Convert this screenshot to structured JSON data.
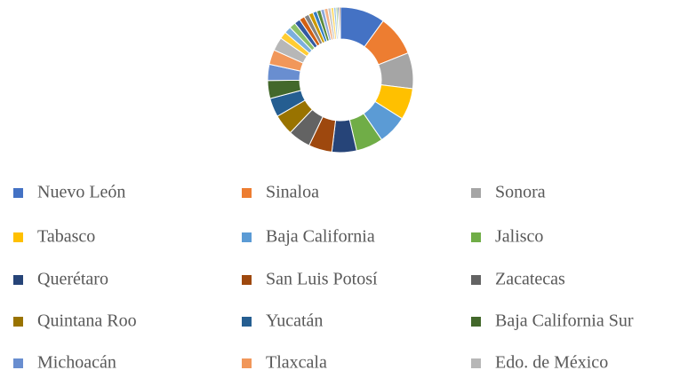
{
  "chart_data": {
    "type": "donut",
    "categories": [
      "Nuevo León",
      "Sinaloa",
      "Sonora",
      "Tabasco",
      "Baja California",
      "Jalisco",
      "Querétaro",
      "San Luis Potosí",
      "Zacatecas",
      "Quintana Roo",
      "Yucatán",
      "Baja California Sur",
      "Michoacán",
      "Tlaxcala",
      "Edo. de México",
      null,
      null,
      null,
      null,
      null,
      null,
      null,
      null,
      null,
      null,
      null,
      null,
      null,
      null,
      null,
      null,
      null
    ],
    "values": [
      10,
      9,
      8,
      7,
      6.5,
      6,
      5.5,
      5.2,
      5,
      4.6,
      4.2,
      4,
      3.6,
      3.3,
      3,
      1.6,
      1.5,
      1.4,
      1.3,
      1.2,
      1.1,
      1,
      0.9,
      0.9,
      0.8,
      0.8,
      0.7,
      0.6,
      0.5,
      0.4,
      0.3,
      0.3
    ],
    "colors": [
      "#4472C4",
      "#ED7D31",
      "#A5A5A5",
      "#FFC000",
      "#5B9BD5",
      "#70AD47",
      "#264478",
      "#9E480E",
      "#636363",
      "#997300",
      "#255E91",
      "#43682B",
      "#698ED0",
      "#F1975A",
      "#B7B7B7",
      "#FFCD33",
      "#7CAFDD",
      "#8CC168",
      "#335AA1",
      "#D26012",
      "#848484",
      "#CC9A00",
      "#327DC2",
      "#5A8A39",
      "#8FAADC",
      "#F4B183",
      "#C9C9C9",
      "#FFD966",
      "#9DC3E6",
      "#A9D18E",
      "#203864",
      "#843C0C"
    ],
    "legend": "bottom"
  }
}
